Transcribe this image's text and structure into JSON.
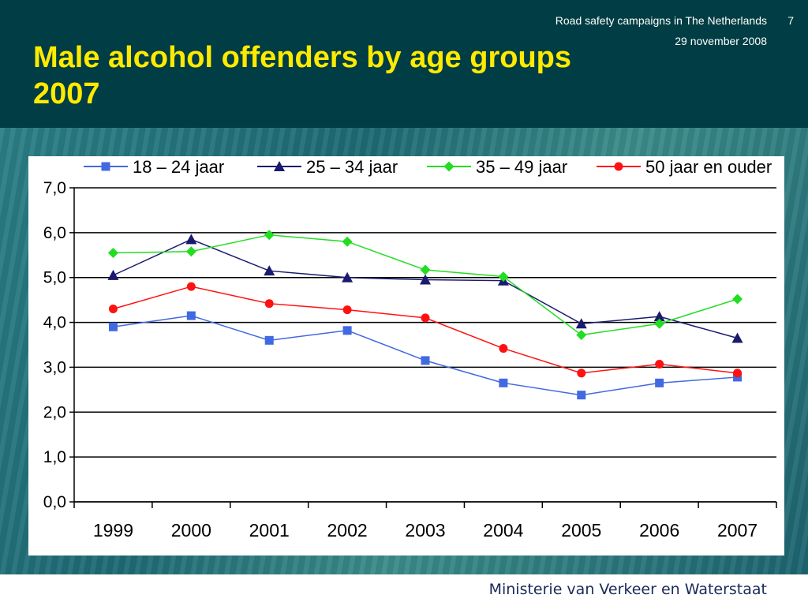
{
  "slide": {
    "title": "Male alcohol offenders by age groups 2007",
    "presentation": "Road safety campaigns in The Netherlands",
    "page_number": "7",
    "date": "29 november 2008",
    "ministry": "Ministerie van Verkeer en Waterstaat"
  },
  "colors": {
    "header_bg": "#003d44",
    "title": "#ffea00"
  },
  "chart_data": {
    "type": "line",
    "title": "",
    "xlabel": "",
    "ylabel": "",
    "categories": [
      "1999",
      "2000",
      "2001",
      "2002",
      "2003",
      "2004",
      "2005",
      "2006",
      "2007"
    ],
    "ylim": [
      0,
      7
    ],
    "yticks": [
      "0,0",
      "1,0",
      "2,0",
      "3,0",
      "4,0",
      "5,0",
      "6,0",
      "7,0"
    ],
    "grid": "horizontal",
    "legend_position": "top",
    "series": [
      {
        "name": "18 – 24 jaar",
        "color": "#4169e1",
        "marker": "square",
        "values": [
          3.9,
          4.15,
          3.6,
          3.82,
          3.15,
          2.65,
          2.38,
          2.65,
          2.78
        ]
      },
      {
        "name": "25 – 34 jaar",
        "color": "#1a1a6e",
        "marker": "triangle",
        "values": [
          5.05,
          5.85,
          5.15,
          5.0,
          4.95,
          4.93,
          3.97,
          4.13,
          3.65
        ]
      },
      {
        "name": "35 – 49 jaar",
        "color": "#22dd22",
        "marker": "diamond",
        "values": [
          5.55,
          5.58,
          5.95,
          5.8,
          5.17,
          5.02,
          3.72,
          3.97,
          4.52
        ]
      },
      {
        "name": "50 jaar en ouder",
        "color": "#ff1111",
        "marker": "circle",
        "values": [
          4.3,
          4.8,
          4.42,
          4.28,
          4.1,
          3.42,
          2.87,
          3.07,
          2.87
        ]
      }
    ]
  }
}
